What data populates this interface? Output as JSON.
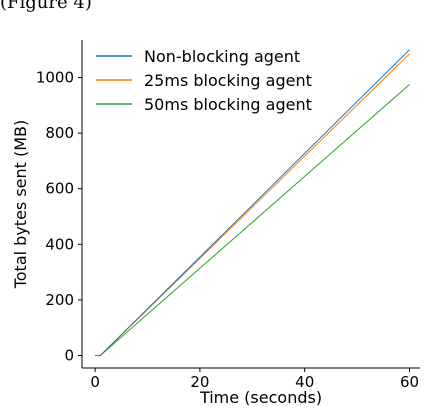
{
  "top_caption": "(Figure 4)",
  "chart_data": {
    "type": "line",
    "title": "",
    "xlabel": "Time (seconds)",
    "ylabel": "Total bytes sent (MB)",
    "xlim": [
      -2.5,
      62
    ],
    "ylim": [
      -45,
      1135
    ],
    "xticks": [
      0,
      20,
      40,
      60
    ],
    "yticks": [
      0,
      200,
      400,
      600,
      800,
      1000
    ],
    "grid": false,
    "legend_position": "top-left",
    "series": [
      {
        "name": "Non-blocking agent",
        "color": "#1f77b4",
        "x": [
          0,
          1,
          60
        ],
        "y": [
          0,
          0,
          1100
        ]
      },
      {
        "name": "25ms blocking agent",
        "color": "#ff7f0e",
        "x": [
          0,
          1,
          60
        ],
        "y": [
          0,
          0,
          1085
        ]
      },
      {
        "name": "50ms blocking agent",
        "color": "#2ca02c",
        "x": [
          0,
          1,
          60
        ],
        "y": [
          0,
          0,
          975
        ]
      }
    ]
  }
}
